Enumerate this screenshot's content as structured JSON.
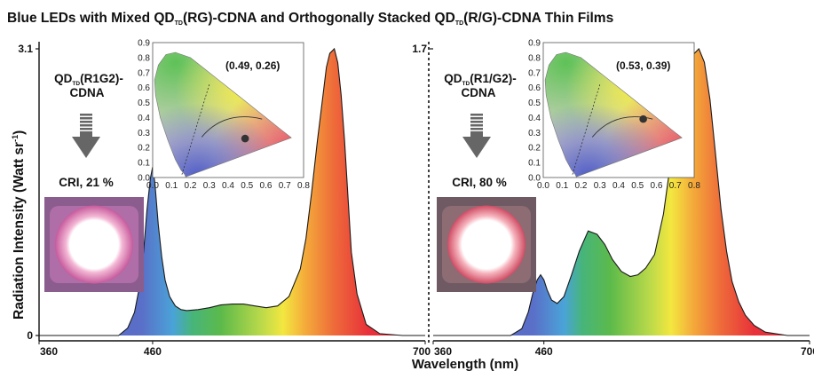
{
  "title": {
    "part1": "Blue LEDs with Mixed QD",
    "sub1": "TD",
    "part2": "(RG)-CDNA and Orthogonally Stacked QD",
    "sub2": "TD",
    "part3": "(R/G)-CDNA Thin Films"
  },
  "ylabel": {
    "main": "Radiation Intensity (Watt sr",
    "sup": "-1",
    "end": ")"
  },
  "xlabel": "Wavelength (nm)",
  "colors": {
    "blue": "#5b6fc2",
    "green": "#57b848",
    "yellow": "#f0e43a",
    "orange": "#f29a35",
    "red": "#e8313a",
    "cie_dot": "#333333"
  },
  "chart_data": [
    {
      "type": "area",
      "panel": "left",
      "sample_label": {
        "line1a": "QD",
        "line1sub": "TD",
        "line1b": "(R1G2)-",
        "line2": "CDNA"
      },
      "cri_label": "CRI, 21 %",
      "xlim": [
        360,
        700
      ],
      "ylim": [
        0,
        3.1
      ],
      "xticks": [
        "360",
        "460",
        "700"
      ],
      "yticks": [
        "0",
        "3.1"
      ],
      "x": [
        360,
        430,
        438,
        444,
        448,
        452,
        455,
        458,
        460,
        462,
        465,
        468,
        471,
        475,
        480,
        485,
        490,
        500,
        510,
        520,
        530,
        540,
        550,
        560,
        570,
        580,
        590,
        595,
        600,
        605,
        610,
        613,
        616,
        620,
        623,
        626,
        629,
        632,
        635,
        640,
        648,
        660,
        680,
        700
      ],
      "y": [
        0,
        0.0,
        0.08,
        0.25,
        0.5,
        0.9,
        1.35,
        1.7,
        1.82,
        1.65,
        1.2,
        0.85,
        0.6,
        0.42,
        0.32,
        0.28,
        0.27,
        0.28,
        0.3,
        0.33,
        0.34,
        0.34,
        0.32,
        0.3,
        0.32,
        0.42,
        0.72,
        1.05,
        1.55,
        2.1,
        2.6,
        2.9,
        3.05,
        3.1,
        2.95,
        2.6,
        2.1,
        1.5,
        0.9,
        0.45,
        0.12,
        0.02,
        0.0,
        0.0
      ],
      "cie_inset": {
        "coordinate": "(0.49, 0.26)",
        "point": [
          0.49,
          0.26
        ],
        "xticks": [
          "0.0",
          "0.1",
          "0.2",
          "0.3",
          "0.4",
          "0.5",
          "0.6",
          "0.7",
          "0.8"
        ],
        "yticks": [
          "0.0",
          "0.1",
          "0.2",
          "0.3",
          "0.4",
          "0.5",
          "0.6",
          "0.7",
          "0.8",
          "0.9"
        ]
      }
    },
    {
      "type": "area",
      "panel": "right",
      "sample_label": {
        "line1a": "QD",
        "line1sub": "TD",
        "line1b": "(R1/G2)-",
        "line2": "CDNA"
      },
      "cri_label": "CRI, 80 %",
      "xlim": [
        360,
        700
      ],
      "ylim": [
        0,
        1.7
      ],
      "xticks": [
        "360",
        "460",
        "700"
      ],
      "yticks": [
        "1.7"
      ],
      "x": [
        360,
        430,
        440,
        446,
        450,
        454,
        457,
        460,
        463,
        467,
        472,
        478,
        485,
        492,
        500,
        508,
        515,
        522,
        530,
        538,
        545,
        552,
        560,
        568,
        575,
        582,
        588,
        594,
        600,
        605,
        610,
        615,
        620,
        625,
        630,
        636,
        642,
        650,
        660,
        680,
        700
      ],
      "y": [
        0,
        0.0,
        0.04,
        0.14,
        0.25,
        0.33,
        0.36,
        0.33,
        0.27,
        0.21,
        0.19,
        0.23,
        0.36,
        0.5,
        0.62,
        0.6,
        0.54,
        0.45,
        0.38,
        0.35,
        0.36,
        0.4,
        0.48,
        0.72,
        1.05,
        1.35,
        1.55,
        1.66,
        1.7,
        1.62,
        1.4,
        1.08,
        0.75,
        0.5,
        0.32,
        0.2,
        0.12,
        0.06,
        0.02,
        0.0,
        0.0
      ],
      "cie_inset": {
        "coordinate": "(0.53, 0.39)",
        "point": [
          0.53,
          0.39
        ],
        "xticks": [
          "0.0",
          "0.1",
          "0.2",
          "0.3",
          "0.4",
          "0.5",
          "0.6",
          "0.7",
          "0.8"
        ],
        "yticks": [
          "0.0",
          "0.1",
          "0.2",
          "0.3",
          "0.4",
          "0.5",
          "0.6",
          "0.7",
          "0.8",
          "0.9"
        ]
      }
    }
  ]
}
